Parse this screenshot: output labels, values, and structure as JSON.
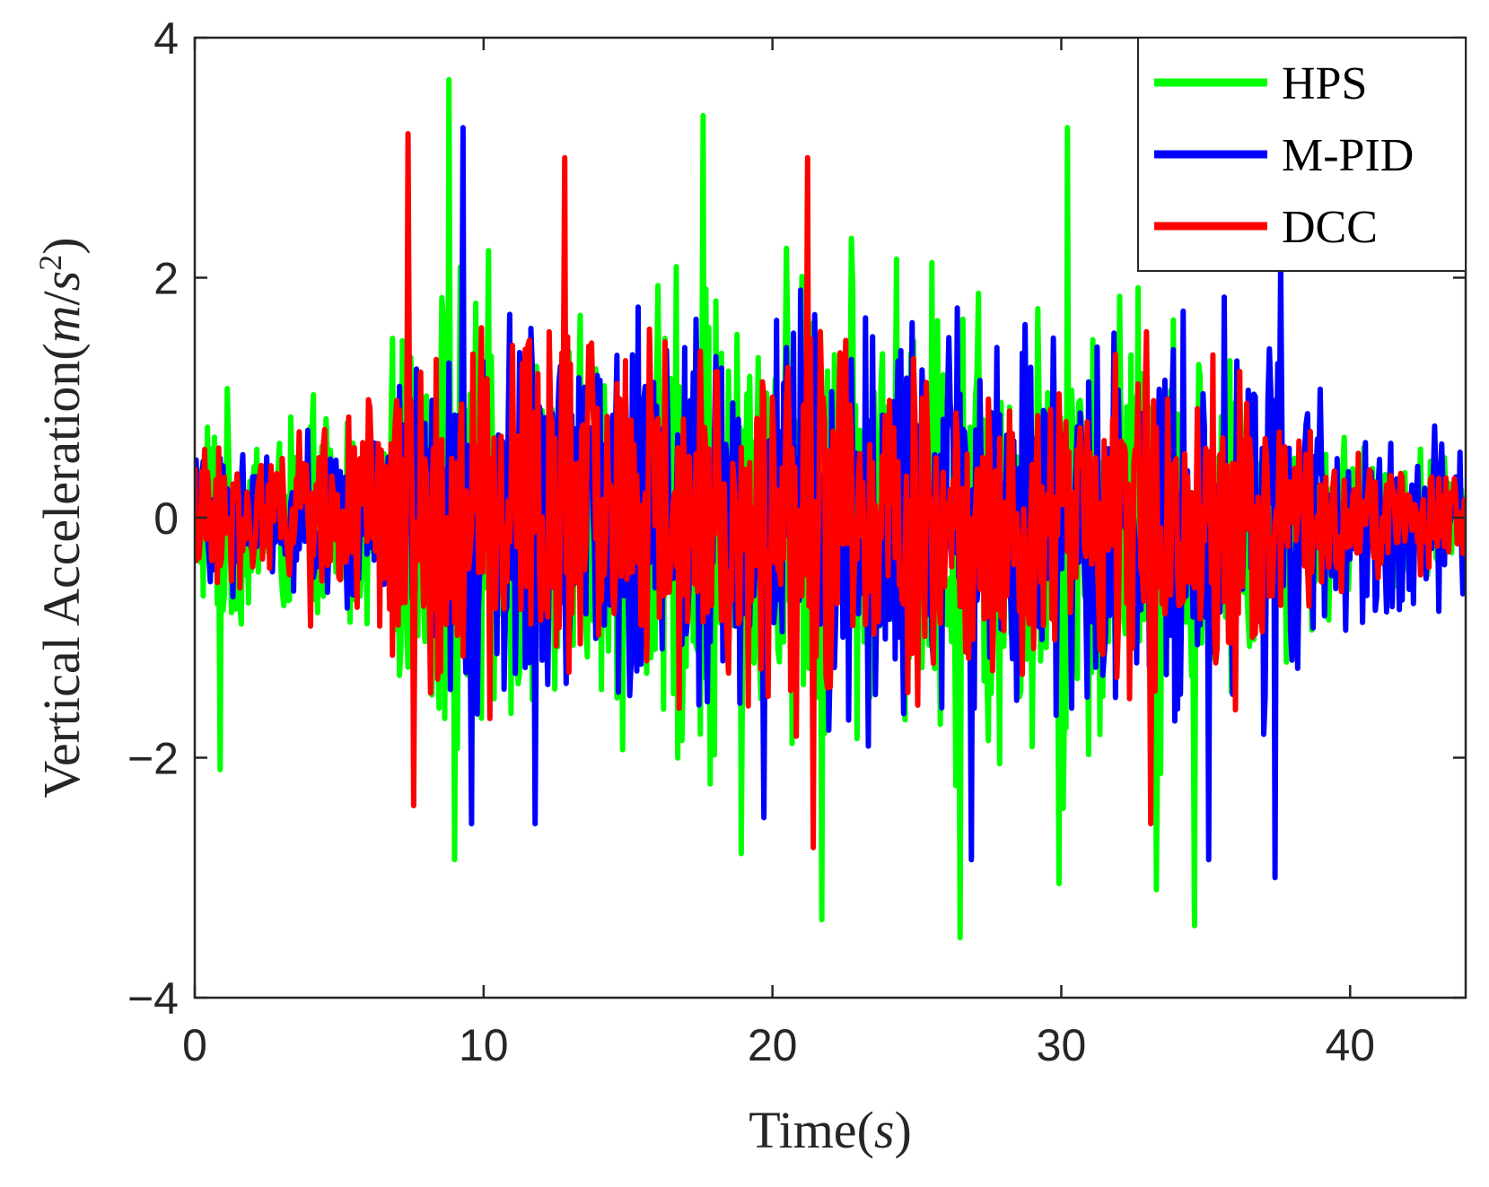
{
  "chart_data": {
    "type": "line",
    "xlabel": {
      "text": "Time",
      "unit": "s"
    },
    "ylabel": {
      "text": "Vertical Acceleration",
      "unit_num": "m",
      "unit_den": "s",
      "unit_den_exp": "2"
    },
    "xlim": [
      0,
      44
    ],
    "ylim": [
      -4,
      4
    ],
    "xticks": [
      "0",
      "10",
      "20",
      "30",
      "40"
    ],
    "yticks": [
      "4",
      "2",
      "0",
      "−2",
      "−4"
    ],
    "legend_position": "top-right",
    "grid": false,
    "series": [
      {
        "name": "HPS",
        "color": "#00ff00",
        "samples": 900,
        "envelope": [
          [
            0,
            1.2
          ],
          [
            3,
            1.0
          ],
          [
            6,
            1.2
          ],
          [
            9,
            2.5
          ],
          [
            12,
            1.8
          ],
          [
            18,
            2.6
          ],
          [
            22,
            2.4
          ],
          [
            27,
            2.6
          ],
          [
            30,
            2.6
          ],
          [
            34,
            2.2
          ],
          [
            37,
            1.5
          ],
          [
            40,
            0.8
          ],
          [
            44,
            0.6
          ]
        ],
        "peaks": [
          [
            0.9,
            -2.1
          ],
          [
            8.8,
            3.65
          ],
          [
            9.0,
            -2.85
          ],
          [
            17.6,
            3.35
          ],
          [
            18.9,
            -2.8
          ],
          [
            21.7,
            -3.35
          ],
          [
            26.5,
            -3.5
          ],
          [
            29.9,
            -3.05
          ],
          [
            30.2,
            3.25
          ],
          [
            34.6,
            -3.4
          ],
          [
            33.3,
            -3.1
          ]
        ]
      },
      {
        "name": "M-PID",
        "color": "#0000ff",
        "samples": 900,
        "envelope": [
          [
            0,
            0.8
          ],
          [
            3,
            0.7
          ],
          [
            6,
            1.0
          ],
          [
            9,
            2.0
          ],
          [
            12,
            1.9
          ],
          [
            18,
            1.9
          ],
          [
            22,
            2.1
          ],
          [
            27,
            2.1
          ],
          [
            30,
            2.0
          ],
          [
            34,
            2.0
          ],
          [
            37,
            1.9
          ],
          [
            40,
            1.0
          ],
          [
            44,
            0.8
          ]
        ],
        "peaks": [
          [
            9.3,
            3.25
          ],
          [
            9.6,
            -2.55
          ],
          [
            11.8,
            -2.55
          ],
          [
            19.7,
            -2.5
          ],
          [
            26.9,
            -2.85
          ],
          [
            35.1,
            -2.85
          ],
          [
            37.4,
            -3.0
          ],
          [
            37.6,
            2.1
          ]
        ]
      },
      {
        "name": "DCC",
        "color": "#ff0000",
        "samples": 900,
        "envelope": [
          [
            0,
            0.7
          ],
          [
            3,
            0.8
          ],
          [
            6,
            1.2
          ],
          [
            9,
            1.9
          ],
          [
            12,
            1.9
          ],
          [
            18,
            1.8
          ],
          [
            22,
            1.9
          ],
          [
            27,
            1.7
          ],
          [
            30,
            1.5
          ],
          [
            34,
            1.8
          ],
          [
            37,
            1.6
          ],
          [
            40,
            0.6
          ],
          [
            44,
            0.45
          ]
        ],
        "peaks": [
          [
            7.4,
            3.2
          ],
          [
            7.6,
            -2.4
          ],
          [
            12.8,
            3.0
          ],
          [
            21.2,
            3.0
          ],
          [
            21.4,
            -2.75
          ],
          [
            33.1,
            -2.55
          ]
        ]
      }
    ]
  }
}
